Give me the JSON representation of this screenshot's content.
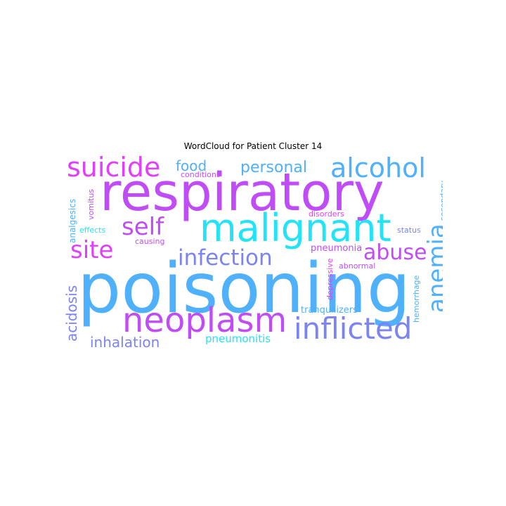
{
  "title": "WordCloud for Patient Cluster 14",
  "palette": {
    "magenta": "#e040fb",
    "purple": "#c04cf8",
    "cyan": "#22e3f7",
    "sky": "#4fb0fb",
    "periwinkle": "#7b84f5",
    "lavender": "#9d6cf8"
  },
  "words": {
    "poisoning": "poisoning",
    "respiratory": "respiratory",
    "malignant": "malignant",
    "neoplasm": "neoplasm",
    "inflicted": "inflicted",
    "alcohol": "alcohol",
    "suicide": "suicide",
    "anemia": "anemia",
    "self": "self",
    "site": "site",
    "infection": "infection",
    "abuse": "abuse",
    "personal": "personal",
    "food": "food",
    "acidosis": "acidosis",
    "inhalation": "inhalation",
    "pneumonitis": "pneumonitis",
    "pneumonia": "pneumonia",
    "tranquilizers": "tranquilizers",
    "analgesics": "analgesics",
    "vomitus": "vomitus",
    "conditions": "conditions",
    "disorders": "disorders",
    "effects": "effects",
    "causing": "causing",
    "abnormal": "abnormal",
    "depressive": "depressive",
    "hemorrhage": "hemorrhage",
    "secondary": "secondary",
    "status": "status"
  }
}
